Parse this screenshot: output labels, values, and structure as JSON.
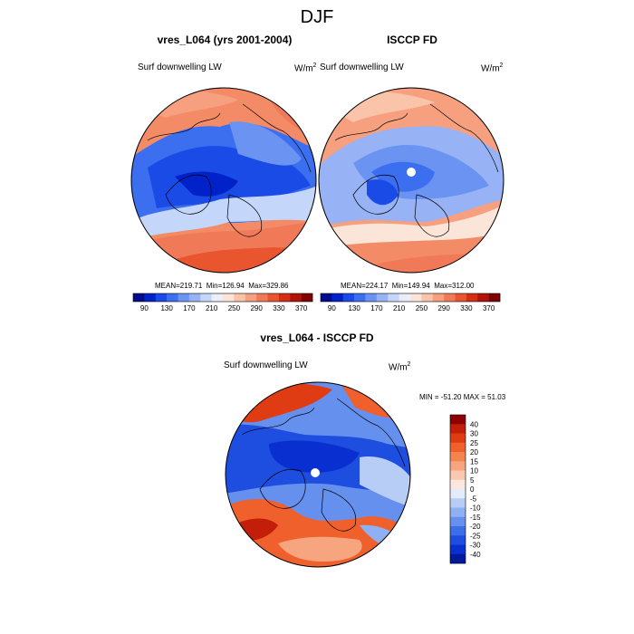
{
  "page": {
    "title": "DJF"
  },
  "panels": [
    {
      "id": "model",
      "title": "vres_L064 (yrs 2001-2004)",
      "left_label": "Surf downwelling LW",
      "unit_base": "W/m",
      "unit_exp": "2",
      "stats": {
        "mean_label": "MEAN=",
        "mean": "219.71",
        "min_label": "Min=",
        "min": "126.94",
        "max_label": "Max=",
        "max": "329.86"
      }
    },
    {
      "id": "obs",
      "title": "ISCCP FD",
      "left_label": "Surf downwelling LW",
      "unit_base": "W/m",
      "unit_exp": "2",
      "stats": {
        "mean_label": "MEAN=",
        "mean": "224.17",
        "min_label": "Min=",
        "min": "149.94",
        "max_label": "Max=",
        "max": "312.00"
      }
    },
    {
      "id": "diff",
      "title": "vres_L064 - ISCCP FD",
      "left_label": "Surf downwelling LW",
      "unit_base": "W/m",
      "unit_exp": "2",
      "stats_text": "MIN = -51.20 MAX =  51.03"
    }
  ],
  "chart_data": [
    {
      "type": "heatmap",
      "projection": "north polar stereographic",
      "title": "vres_L064 (yrs 2001-2004)",
      "variable": "Surf downwelling LW",
      "units": "W/m2",
      "stats": {
        "mean": 219.71,
        "min": 126.94,
        "max": 329.86
      },
      "colorbar_ticks": [
        "90",
        "130",
        "170",
        "210",
        "250",
        "290",
        "330",
        "370"
      ],
      "colorbar_colors": [
        "#000c8c",
        "#0022c8",
        "#1a4be6",
        "#3b6ff0",
        "#6a93f2",
        "#97b3f5",
        "#c4d6fa",
        "#e8eefa",
        "#fbe4d8",
        "#f9c4aa",
        "#f6a07f",
        "#f07a57",
        "#e8552f",
        "#d32f14",
        "#b01408",
        "#7e0303"
      ]
    },
    {
      "type": "heatmap",
      "projection": "north polar stereographic",
      "title": "ISCCP FD",
      "variable": "Surf downwelling LW",
      "units": "W/m2",
      "stats": {
        "mean": 224.17,
        "min": 149.94,
        "max": 312.0
      },
      "colorbar_ticks": [
        "90",
        "130",
        "170",
        "210",
        "250",
        "290",
        "330",
        "370"
      ],
      "colorbar_colors": [
        "#000c8c",
        "#0022c8",
        "#1a4be6",
        "#3b6ff0",
        "#6a93f2",
        "#97b3f5",
        "#c4d6fa",
        "#e8eefa",
        "#fbe4d8",
        "#f9c4aa",
        "#f6a07f",
        "#f07a57",
        "#e8552f",
        "#d32f14",
        "#b01408",
        "#7e0303"
      ]
    },
    {
      "type": "heatmap",
      "projection": "north polar stereographic",
      "title": "vres_L064 - ISCCP FD",
      "variable": "Surf downwelling LW",
      "units": "W/m2",
      "stats": {
        "min": -51.2,
        "max": 51.03
      },
      "colorbar_ticks": [
        "40",
        "30",
        "25",
        "20",
        "15",
        "10",
        "5",
        "0",
        "-5",
        "-10",
        "-15",
        "-20",
        "-25",
        "-30",
        "-40"
      ],
      "colorbar_colors": [
        "#8c0000",
        "#c21e0a",
        "#e03c14",
        "#f0602c",
        "#f4834e",
        "#f6a57e",
        "#f9c8ae",
        "#fbe7de",
        "#e4ecfb",
        "#b8cdf5",
        "#8fb0f2",
        "#6690ee",
        "#3d6eea",
        "#1e4ee0",
        "#0a2fd0",
        "#001a9c"
      ]
    }
  ]
}
